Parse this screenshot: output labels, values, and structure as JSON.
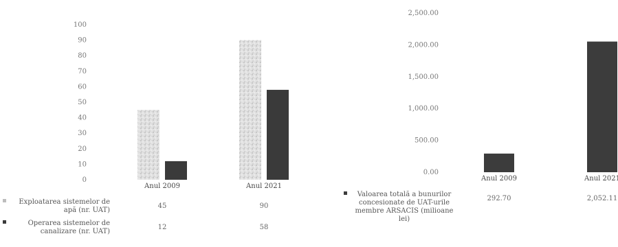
{
  "chart_data": [
    {
      "type": "bar",
      "categories": [
        "Anul 2009",
        "Anul 2021"
      ],
      "series": [
        {
          "name": "Exploatarea sistemelor de apă (nr. UAT)",
          "values": [
            45,
            90
          ],
          "value_labels": [
            "45",
            "90"
          ],
          "color": "#d4d4d4"
        },
        {
          "name": "Operarea sistemelor de canalizare (nr. UAT)",
          "values": [
            12,
            58
          ],
          "value_labels": [
            "12",
            "58"
          ],
          "color": "#3a3a3a"
        }
      ],
      "yticks": [
        "0",
        "10",
        "20",
        "30",
        "40",
        "50",
        "60",
        "70",
        "80",
        "90",
        "100"
      ],
      "ylim": [
        0,
        100
      ],
      "legend_position": "bottom-table",
      "grid": false
    },
    {
      "type": "bar",
      "categories": [
        "Anul 2009",
        "Anul 2021"
      ],
      "series": [
        {
          "name": "Valoarea totală a bunurilor concesionate de UAT-urile membre ARSACIS (milioane lei)",
          "values": [
            292.7,
            2052.11
          ],
          "value_labels": [
            "292.70",
            "2,052.11"
          ],
          "color": "#3c3c3c"
        }
      ],
      "yticks": [
        "0.00",
        "500.00",
        "1,000.00",
        "1,500.00",
        "2,000.00",
        "2,500.00"
      ],
      "ylim": [
        0,
        2500
      ],
      "legend_position": "bottom-table",
      "grid": false
    }
  ]
}
